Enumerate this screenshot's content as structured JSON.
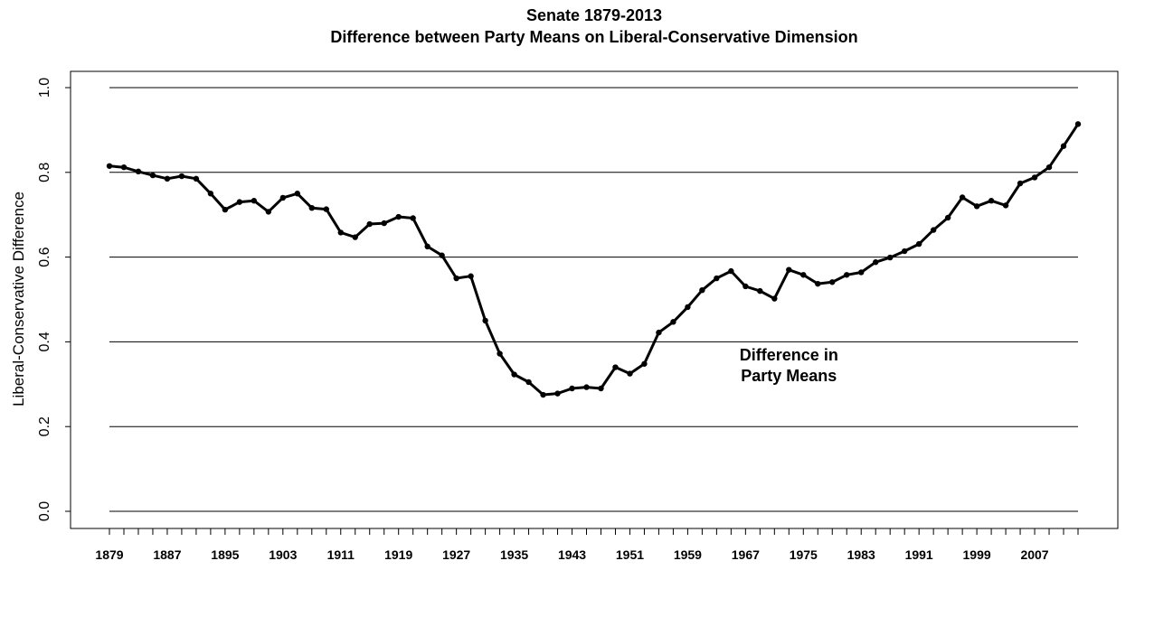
{
  "chart_data": {
    "type": "line",
    "title": "Senate 1879-2013",
    "subtitle": "Difference between Party Means on Liberal-Conservative Dimension",
    "xlabel": "",
    "ylabel": "Liberal-Conservative Difference",
    "ylim": [
      0,
      1
    ],
    "xlim": [
      1879,
      2013
    ],
    "grid": "horizontal",
    "y_ticks": [
      "0.0",
      "0.2",
      "0.4",
      "0.6",
      "0.8",
      "1.0"
    ],
    "x_ticks": [
      "1879",
      "1887",
      "1895",
      "1903",
      "1911",
      "1919",
      "1927",
      "1935",
      "1943",
      "1951",
      "1959",
      "1967",
      "1975",
      "1983",
      "1991",
      "1999",
      "2007"
    ],
    "annotation": {
      "lines": [
        "Difference in",
        "Party Means"
      ],
      "x": 1973,
      "y": 0.345
    },
    "series": [
      {
        "color": "#000000",
        "x": [
          1879,
          1881,
          1883,
          1885,
          1887,
          1889,
          1891,
          1893,
          1895,
          1897,
          1899,
          1901,
          1903,
          1905,
          1907,
          1909,
          1911,
          1913,
          1915,
          1917,
          1919,
          1921,
          1923,
          1925,
          1927,
          1929,
          1931,
          1933,
          1935,
          1937,
          1939,
          1941,
          1943,
          1945,
          1947,
          1949,
          1951,
          1953,
          1955,
          1957,
          1959,
          1961,
          1963,
          1965,
          1967,
          1969,
          1971,
          1973,
          1975,
          1977,
          1979,
          1981,
          1983,
          1985,
          1987,
          1989,
          1991,
          1993,
          1995,
          1997,
          1999,
          2001,
          2003,
          2005,
          2007,
          2009,
          2011,
          2013
        ],
        "y": [
          0.815,
          0.812,
          0.802,
          0.793,
          0.785,
          0.791,
          0.785,
          0.75,
          0.712,
          0.73,
          0.733,
          0.707,
          0.74,
          0.75,
          0.716,
          0.713,
          0.658,
          0.647,
          0.678,
          0.68,
          0.695,
          0.692,
          0.625,
          0.604,
          0.55,
          0.555,
          0.45,
          0.372,
          0.323,
          0.305,
          0.275,
          0.278,
          0.29,
          0.293,
          0.29,
          0.34,
          0.325,
          0.348,
          0.422,
          0.447,
          0.482,
          0.522,
          0.55,
          0.567,
          0.531,
          0.52,
          0.502,
          0.57,
          0.558,
          0.537,
          0.541,
          0.558,
          0.564,
          0.588,
          0.599,
          0.614,
          0.631,
          0.664,
          0.693,
          0.741,
          0.72,
          0.733,
          0.722,
          0.774,
          0.788,
          0.812,
          0.862,
          0.914
        ]
      }
    ]
  }
}
